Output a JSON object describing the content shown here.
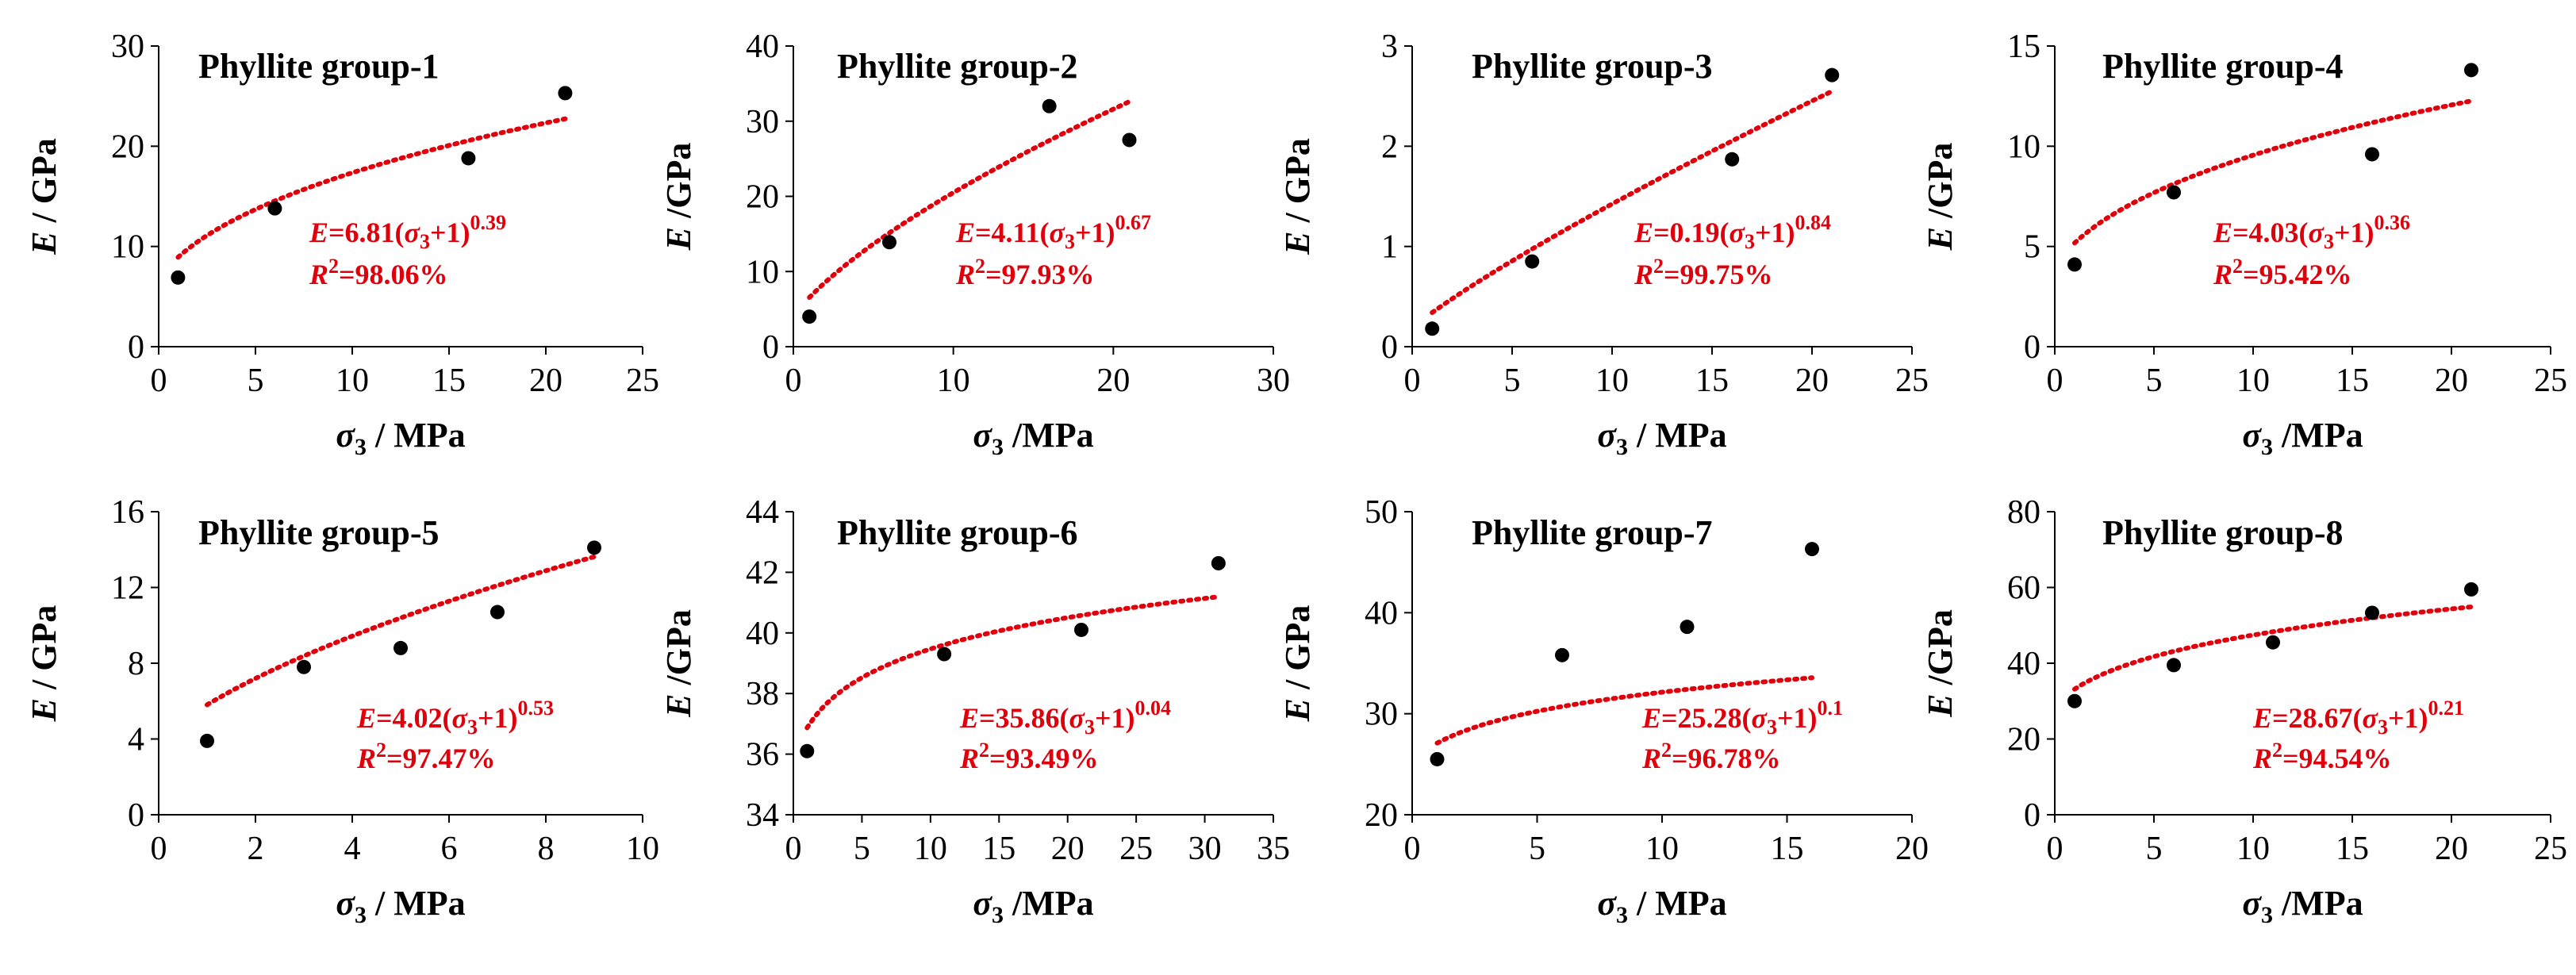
{
  "chart_data": [
    {
      "type": "scatter",
      "title": "Phyllite group-1",
      "xlabel_var": "σ",
      "xlabel_sub": "3",
      "xlabel_unit": " / MPa",
      "ylabel_var": "E",
      "ylabel_unit": " / GPa",
      "xlim": [
        0,
        25
      ],
      "xticks": [
        0,
        5,
        10,
        15,
        20,
        25
      ],
      "ylim": [
        0,
        30
      ],
      "yticks": [
        0,
        10,
        20,
        30
      ],
      "x": [
        1,
        6,
        16,
        21
      ],
      "y": [
        6.9,
        13.8,
        18.8,
        25.3
      ],
      "fit": {
        "a": 6.81,
        "b": 0.39
      },
      "equation": {
        "lhs": "E",
        "eq": "=",
        "coef": "6.81",
        "open": "(",
        "var": "σ",
        "sub": "3",
        "plus": "+1)",
        "exp": "0.39"
      },
      "r2": {
        "r": "R",
        "sup": "2",
        "val": "=98.06%"
      }
    },
    {
      "type": "scatter",
      "title": "Phyllite group-2",
      "xlabel_var": "σ",
      "xlabel_sub": "3",
      "xlabel_unit": " /MPa",
      "ylabel_var": "E",
      "ylabel_unit": " /GPa",
      "xlim": [
        0,
        30
      ],
      "xticks": [
        0,
        10,
        20,
        30
      ],
      "ylim": [
        0,
        40
      ],
      "yticks": [
        0,
        10,
        20,
        30,
        40
      ],
      "x": [
        1,
        6,
        16,
        21
      ],
      "y": [
        4.0,
        13.9,
        32.0,
        27.5
      ],
      "fit": {
        "a": 4.11,
        "b": 0.67
      },
      "equation": {
        "lhs": "E",
        "eq": "=",
        "coef": "4.11",
        "open": "(",
        "var": "σ",
        "sub": "3",
        "plus": "+1)",
        "exp": "0.67"
      },
      "r2": {
        "r": "R",
        "sup": "2",
        "val": "=97.93%"
      }
    },
    {
      "type": "scatter",
      "title": "Phyllite group-3",
      "xlabel_var": "σ",
      "xlabel_sub": "3",
      "xlabel_unit": " / MPa",
      "ylabel_var": "E",
      "ylabel_unit": " / GPa",
      "xlim": [
        0,
        25
      ],
      "xticks": [
        0,
        5,
        10,
        15,
        20,
        25
      ],
      "ylim": [
        0,
        3
      ],
      "yticks": [
        0,
        1,
        2,
        3
      ],
      "x": [
        1,
        6,
        16,
        21
      ],
      "y": [
        0.18,
        0.85,
        1.87,
        2.71
      ],
      "fit": {
        "a": 0.19,
        "b": 0.84
      },
      "equation": {
        "lhs": "E",
        "eq": "=",
        "coef": "0.19",
        "open": "(",
        "var": "σ",
        "sub": "3",
        "plus": "+1)",
        "exp": "0.84"
      },
      "r2": {
        "r": "R",
        "sup": "2",
        "val": "=99.75%"
      }
    },
    {
      "type": "scatter",
      "title": "Phyllite group-4",
      "xlabel_var": "σ",
      "xlabel_sub": "3",
      "xlabel_unit": " /MPa",
      "ylabel_var": "E",
      "ylabel_unit": " /GPa",
      "xlim": [
        0,
        25
      ],
      "xticks": [
        0,
        5,
        10,
        15,
        20,
        25
      ],
      "ylim": [
        0,
        15
      ],
      "yticks": [
        0,
        5,
        10,
        15
      ],
      "x": [
        1,
        6,
        16,
        21
      ],
      "y": [
        4.1,
        7.7,
        9.6,
        13.8
      ],
      "fit": {
        "a": 4.03,
        "b": 0.36
      },
      "equation": {
        "lhs": "E",
        "eq": "=",
        "coef": "4.03",
        "open": "(",
        "var": "σ",
        "sub": "3",
        "plus": "+1)",
        "exp": "0.36"
      },
      "r2": {
        "r": "R",
        "sup": "2",
        "val": "=95.42%"
      }
    },
    {
      "type": "scatter",
      "title": "Phyllite group-5",
      "xlabel_var": "σ",
      "xlabel_sub": "3",
      "xlabel_unit": " / MPa",
      "ylabel_var": "E",
      "ylabel_unit": " / GPa",
      "xlim": [
        0,
        10
      ],
      "xticks": [
        0,
        2,
        4,
        6,
        8,
        10
      ],
      "ylim": [
        0,
        16
      ],
      "yticks": [
        0,
        4,
        8,
        12,
        16
      ],
      "x": [
        1,
        3,
        5,
        7,
        9
      ],
      "y": [
        3.9,
        7.8,
        8.8,
        10.7,
        14.1
      ],
      "fit": {
        "a": 4.02,
        "b": 0.53
      },
      "equation": {
        "lhs": "E",
        "eq": "=",
        "coef": "4.02",
        "open": "(",
        "var": "σ",
        "sub": "3",
        "plus": "+1)",
        "exp": "0.53"
      },
      "r2": {
        "r": "R",
        "sup": "2",
        "val": "=97.47%"
      }
    },
    {
      "type": "scatter",
      "title": "Phyllite group-6",
      "xlabel_var": "σ",
      "xlabel_sub": "3",
      "xlabel_unit": " /MPa",
      "ylabel_var": "E",
      "ylabel_unit": " /GPa",
      "xlim": [
        0,
        35
      ],
      "xticks": [
        0,
        5,
        10,
        15,
        20,
        25,
        30,
        35
      ],
      "ylim": [
        34,
        44
      ],
      "yticks": [
        34,
        36,
        38,
        40,
        42,
        44
      ],
      "x": [
        1,
        11,
        21,
        31
      ],
      "y": [
        36.1,
        39.3,
        40.1,
        42.3
      ],
      "fit": {
        "a": 35.86,
        "b": 0.04
      },
      "equation": {
        "lhs": "E",
        "eq": "=",
        "coef": "35.86",
        "open": "(",
        "var": "σ",
        "sub": "3",
        "plus": "+1)",
        "exp": "0.04"
      },
      "r2": {
        "r": "R",
        "sup": "2",
        "val": "=93.49%"
      }
    },
    {
      "type": "scatter",
      "title": "Phyllite group-7",
      "xlabel_var": "σ",
      "xlabel_sub": "3",
      "xlabel_unit": " / MPa",
      "ylabel_var": "E",
      "ylabel_unit": " / GPa",
      "xlim": [
        0,
        20
      ],
      "xticks": [
        0,
        5,
        10,
        15,
        20
      ],
      "ylim": [
        20,
        50
      ],
      "yticks": [
        20,
        30,
        40,
        50
      ],
      "x": [
        1,
        6,
        11,
        16
      ],
      "y": [
        25.5,
        35.8,
        38.6,
        46.3
      ],
      "fit": {
        "a": 25.28,
        "b": 0.1
      },
      "equation": {
        "lhs": "E",
        "eq": "=",
        "coef": "25.28",
        "open": "(",
        "var": "σ",
        "sub": "3",
        "plus": "+1)",
        "exp": "0.1"
      },
      "r2": {
        "r": "R",
        "sup": "2",
        "val": "=96.78%"
      }
    },
    {
      "type": "scatter",
      "title": "Phyllite group-8",
      "xlabel_var": "σ",
      "xlabel_sub": "3",
      "xlabel_unit": " /MPa",
      "ylabel_var": "E",
      "ylabel_unit": " /GPa",
      "xlim": [
        0,
        25
      ],
      "xticks": [
        0,
        5,
        10,
        15,
        20,
        25
      ],
      "ylim": [
        0,
        80
      ],
      "yticks": [
        0,
        20,
        40,
        60,
        80
      ],
      "x": [
        1,
        6,
        11,
        16,
        21
      ],
      "y": [
        30,
        39.5,
        45.5,
        53.3,
        59.5
      ],
      "fit": {
        "a": 28.67,
        "b": 0.21
      },
      "equation": {
        "lhs": "E",
        "eq": "=",
        "coef": "28.67",
        "open": "(",
        "var": "σ",
        "sub": "3",
        "plus": "+1)",
        "exp": "0.21"
      },
      "r2": {
        "r": "R",
        "sup": "2",
        "val": "=94.54%"
      }
    }
  ]
}
